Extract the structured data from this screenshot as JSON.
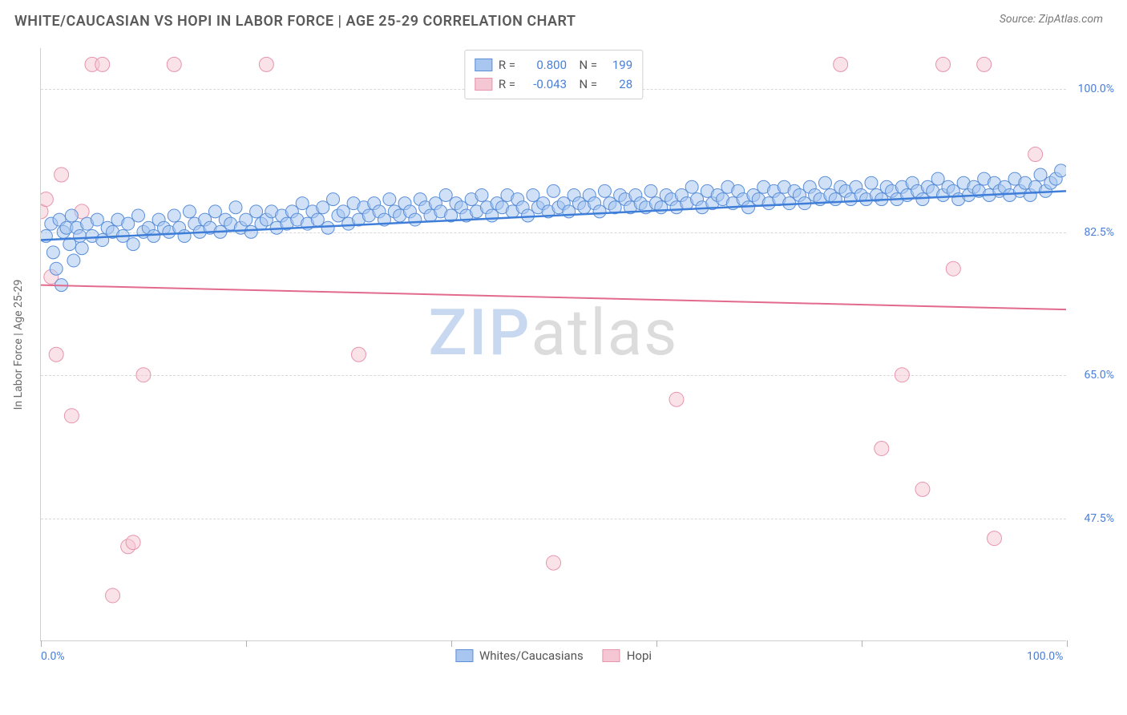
{
  "title": "WHITE/CAUCASIAN VS HOPI IN LABOR FORCE | AGE 25-29 CORRELATION CHART",
  "source": "Source: ZipAtlas.com",
  "ylabel": "In Labor Force | Age 25-29",
  "watermark_left": "ZIP",
  "watermark_right": "atlas",
  "chart": {
    "type": "scatter",
    "background_color": "#ffffff",
    "grid_color": "#d8d8d8",
    "axis_color": "#d0d0d0",
    "tick_label_color": "#4a7fd8",
    "label_color": "#6a6a6a",
    "title_color": "#5a5a5a",
    "title_fontsize": 18,
    "label_fontsize": 14,
    "xlim": [
      0,
      100
    ],
    "ylim": [
      32.5,
      105
    ],
    "x_ticks": [
      0,
      20,
      40,
      60,
      80,
      100
    ],
    "x_tick_labels": {
      "0": "0.0%",
      "100": "100.0%"
    },
    "y_ticks": [
      47.5,
      65.0,
      82.5,
      100.0
    ],
    "y_tick_labels": [
      "47.5%",
      "65.0%",
      "82.5%",
      "100.0%"
    ],
    "series": [
      {
        "name": "Whites/Caucasians",
        "color_fill": "#a8c6f0",
        "color_stroke": "#5b8fd8",
        "line_color": "#3f7ed8",
        "marker_radius": 8,
        "marker_opacity": 0.55,
        "line_width": 2.5,
        "r_value": "0.800",
        "n_value": "199",
        "trend": {
          "x1": 0,
          "y1": 81.5,
          "x2": 100,
          "y2": 87.5
        },
        "points": [
          [
            0.5,
            82
          ],
          [
            1,
            83.5
          ],
          [
            1.2,
            80
          ],
          [
            1.5,
            78
          ],
          [
            1.8,
            84
          ],
          [
            2,
            76
          ],
          [
            2.2,
            82.5
          ],
          [
            2.5,
            83
          ],
          [
            2.8,
            81
          ],
          [
            3,
            84.5
          ],
          [
            3.2,
            79
          ],
          [
            3.5,
            83
          ],
          [
            3.8,
            82
          ],
          [
            4,
            80.5
          ],
          [
            4.5,
            83.5
          ],
          [
            5,
            82
          ],
          [
            5.5,
            84
          ],
          [
            6,
            81.5
          ],
          [
            6.5,
            83
          ],
          [
            7,
            82.5
          ],
          [
            7.5,
            84
          ],
          [
            8,
            82
          ],
          [
            8.5,
            83.5
          ],
          [
            9,
            81
          ],
          [
            9.5,
            84.5
          ],
          [
            10,
            82.5
          ],
          [
            10.5,
            83
          ],
          [
            11,
            82
          ],
          [
            11.5,
            84
          ],
          [
            12,
            83
          ],
          [
            12.5,
            82.5
          ],
          [
            13,
            84.5
          ],
          [
            13.5,
            83
          ],
          [
            14,
            82
          ],
          [
            14.5,
            85
          ],
          [
            15,
            83.5
          ],
          [
            15.5,
            82.5
          ],
          [
            16,
            84
          ],
          [
            16.5,
            83
          ],
          [
            17,
            85
          ],
          [
            17.5,
            82.5
          ],
          [
            18,
            84
          ],
          [
            18.5,
            83.5
          ],
          [
            19,
            85.5
          ],
          [
            19.5,
            83
          ],
          [
            20,
            84
          ],
          [
            20.5,
            82.5
          ],
          [
            21,
            85
          ],
          [
            21.5,
            83.5
          ],
          [
            22,
            84
          ],
          [
            22.5,
            85
          ],
          [
            23,
            83
          ],
          [
            23.5,
            84.5
          ],
          [
            24,
            83.5
          ],
          [
            24.5,
            85
          ],
          [
            25,
            84
          ],
          [
            25.5,
            86
          ],
          [
            26,
            83.5
          ],
          [
            26.5,
            85
          ],
          [
            27,
            84
          ],
          [
            27.5,
            85.5
          ],
          [
            28,
            83
          ],
          [
            28.5,
            86.5
          ],
          [
            29,
            84.5
          ],
          [
            29.5,
            85
          ],
          [
            30,
            83.5
          ],
          [
            30.5,
            86
          ],
          [
            31,
            84
          ],
          [
            31.5,
            85.5
          ],
          [
            32,
            84.5
          ],
          [
            32.5,
            86
          ],
          [
            33,
            85
          ],
          [
            33.5,
            84
          ],
          [
            34,
            86.5
          ],
          [
            34.5,
            85
          ],
          [
            35,
            84.5
          ],
          [
            35.5,
            86
          ],
          [
            36,
            85
          ],
          [
            36.5,
            84
          ],
          [
            37,
            86.5
          ],
          [
            37.5,
            85.5
          ],
          [
            38,
            84.5
          ],
          [
            38.5,
            86
          ],
          [
            39,
            85
          ],
          [
            39.5,
            87
          ],
          [
            40,
            84.5
          ],
          [
            40.5,
            86
          ],
          [
            41,
            85.5
          ],
          [
            41.5,
            84.5
          ],
          [
            42,
            86.5
          ],
          [
            42.5,
            85
          ],
          [
            43,
            87
          ],
          [
            43.5,
            85.5
          ],
          [
            44,
            84.5
          ],
          [
            44.5,
            86
          ],
          [
            45,
            85.5
          ],
          [
            45.5,
            87
          ],
          [
            46,
            85
          ],
          [
            46.5,
            86.5
          ],
          [
            47,
            85.5
          ],
          [
            47.5,
            84.5
          ],
          [
            48,
            87
          ],
          [
            48.5,
            85.5
          ],
          [
            49,
            86
          ],
          [
            49.5,
            85
          ],
          [
            50,
            87.5
          ],
          [
            50.5,
            85.5
          ],
          [
            51,
            86
          ],
          [
            51.5,
            85
          ],
          [
            52,
            87
          ],
          [
            52.5,
            86
          ],
          [
            53,
            85.5
          ],
          [
            53.5,
            87
          ],
          [
            54,
            86
          ],
          [
            54.5,
            85
          ],
          [
            55,
            87.5
          ],
          [
            55.5,
            86
          ],
          [
            56,
            85.5
          ],
          [
            56.5,
            87
          ],
          [
            57,
            86.5
          ],
          [
            57.5,
            85.5
          ],
          [
            58,
            87
          ],
          [
            58.5,
            86
          ],
          [
            59,
            85.5
          ],
          [
            59.5,
            87.5
          ],
          [
            60,
            86
          ],
          [
            60.5,
            85.5
          ],
          [
            61,
            87
          ],
          [
            61.5,
            86.5
          ],
          [
            62,
            85.5
          ],
          [
            62.5,
            87
          ],
          [
            63,
            86
          ],
          [
            63.5,
            88
          ],
          [
            64,
            86.5
          ],
          [
            64.5,
            85.5
          ],
          [
            65,
            87.5
          ],
          [
            65.5,
            86
          ],
          [
            66,
            87
          ],
          [
            66.5,
            86.5
          ],
          [
            67,
            88
          ],
          [
            67.5,
            86
          ],
          [
            68,
            87.5
          ],
          [
            68.5,
            86.5
          ],
          [
            69,
            85.5
          ],
          [
            69.5,
            87
          ],
          [
            70,
            86.5
          ],
          [
            70.5,
            88
          ],
          [
            71,
            86
          ],
          [
            71.5,
            87.5
          ],
          [
            72,
            86.5
          ],
          [
            72.5,
            88
          ],
          [
            73,
            86
          ],
          [
            73.5,
            87.5
          ],
          [
            74,
            87
          ],
          [
            74.5,
            86
          ],
          [
            75,
            88
          ],
          [
            75.5,
            87
          ],
          [
            76,
            86.5
          ],
          [
            76.5,
            88.5
          ],
          [
            77,
            87
          ],
          [
            77.5,
            86.5
          ],
          [
            78,
            88
          ],
          [
            78.5,
            87.5
          ],
          [
            79,
            86.5
          ],
          [
            79.5,
            88
          ],
          [
            80,
            87
          ],
          [
            80.5,
            86.5
          ],
          [
            81,
            88.5
          ],
          [
            81.5,
            87
          ],
          [
            82,
            86.5
          ],
          [
            82.5,
            88
          ],
          [
            83,
            87.5
          ],
          [
            83.5,
            86.5
          ],
          [
            84,
            88
          ],
          [
            84.5,
            87
          ],
          [
            85,
            88.5
          ],
          [
            85.5,
            87.5
          ],
          [
            86,
            86.5
          ],
          [
            86.5,
            88
          ],
          [
            87,
            87.5
          ],
          [
            87.5,
            89
          ],
          [
            88,
            87
          ],
          [
            88.5,
            88
          ],
          [
            89,
            87.5
          ],
          [
            89.5,
            86.5
          ],
          [
            90,
            88.5
          ],
          [
            90.5,
            87
          ],
          [
            91,
            88
          ],
          [
            91.5,
            87.5
          ],
          [
            92,
            89
          ],
          [
            92.5,
            87
          ],
          [
            93,
            88.5
          ],
          [
            93.5,
            87.5
          ],
          [
            94,
            88
          ],
          [
            94.5,
            87
          ],
          [
            95,
            89
          ],
          [
            95.5,
            87.5
          ],
          [
            96,
            88.5
          ],
          [
            96.5,
            87
          ],
          [
            97,
            88
          ],
          [
            97.5,
            89.5
          ],
          [
            98,
            87.5
          ],
          [
            98.5,
            88.5
          ],
          [
            99,
            89
          ],
          [
            99.5,
            90
          ]
        ]
      },
      {
        "name": "Hopi",
        "color_fill": "#f5c6d3",
        "color_stroke": "#e794ad",
        "line_color": "#e26a8d",
        "marker_radius": 9,
        "marker_opacity": 0.5,
        "line_width": 2,
        "r_value": "-0.043",
        "n_value": "28",
        "trend": {
          "x1": 0,
          "y1": 76,
          "x2": 100,
          "y2": 73
        },
        "points": [
          [
            0,
            85
          ],
          [
            0.5,
            86.5
          ],
          [
            1,
            77
          ],
          [
            1.5,
            67.5
          ],
          [
            2,
            89.5
          ],
          [
            3,
            60
          ],
          [
            4,
            85
          ],
          [
            5,
            103
          ],
          [
            6,
            103
          ],
          [
            7,
            38
          ],
          [
            8.5,
            44
          ],
          [
            9,
            44.5
          ],
          [
            10,
            65
          ],
          [
            13,
            103
          ],
          [
            22,
            103
          ],
          [
            31,
            67.5
          ],
          [
            49,
            103
          ],
          [
            50,
            42
          ],
          [
            62,
            62
          ],
          [
            78,
            103
          ],
          [
            82,
            56
          ],
          [
            84,
            65
          ],
          [
            86,
            51
          ],
          [
            88,
            103
          ],
          [
            89,
            78
          ],
          [
            92,
            103
          ],
          [
            93,
            45
          ],
          [
            97,
            92
          ]
        ]
      }
    ]
  },
  "legend_bottom": [
    {
      "label": "Whites/Caucasians",
      "fill": "#a8c6f0",
      "stroke": "#5b8fd8"
    },
    {
      "label": "Hopi",
      "fill": "#f5c6d3",
      "stroke": "#e794ad"
    }
  ]
}
